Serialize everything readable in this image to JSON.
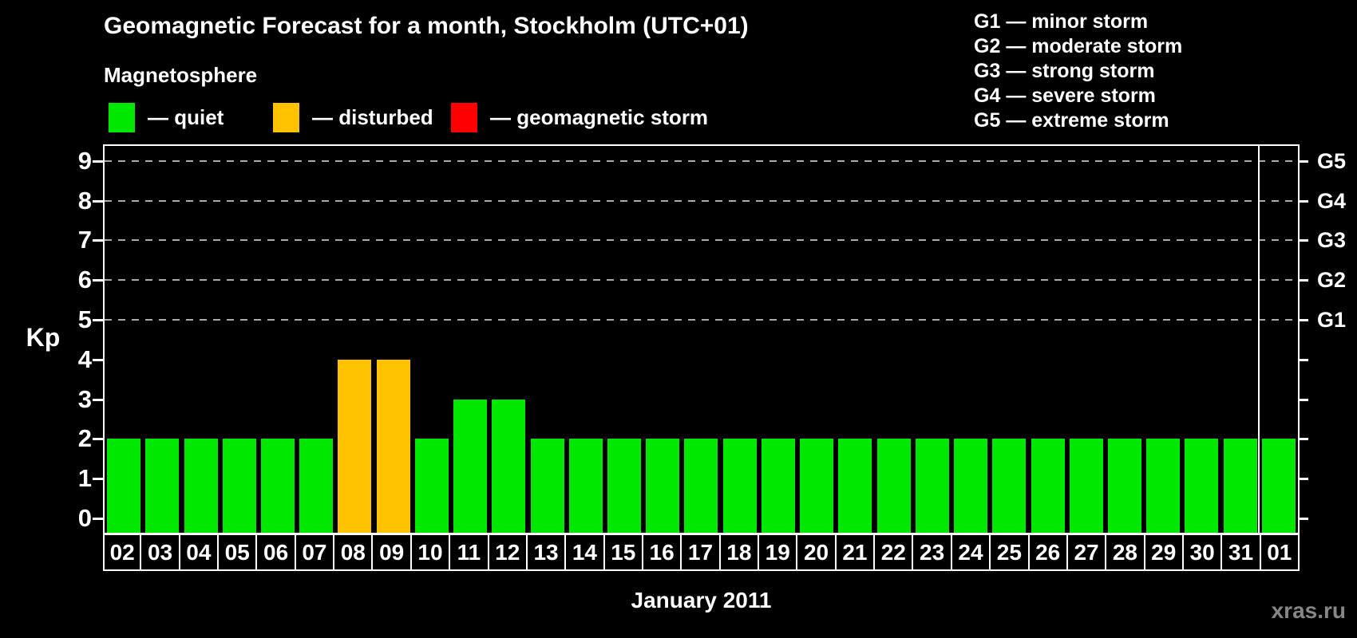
{
  "header": {
    "title": "Geomagnetic Forecast for a month, Stockholm (UTC+01)",
    "subtitle": "Magnetosphere"
  },
  "legend": {
    "items": [
      {
        "name": "quiet",
        "label": "— quiet",
        "color": "#00e800"
      },
      {
        "name": "disturbed",
        "label": "— disturbed",
        "color": "#ffc200"
      },
      {
        "name": "storm",
        "label": "— geomagnetic storm",
        "color": "#ff0000"
      }
    ]
  },
  "storm_scale": {
    "items": [
      {
        "code": "G1",
        "desc": "— minor storm"
      },
      {
        "code": "G2",
        "desc": "— moderate storm"
      },
      {
        "code": "G3",
        "desc": "— strong storm"
      },
      {
        "code": "G4",
        "desc": "— severe storm"
      },
      {
        "code": "G5",
        "desc": "— extreme storm"
      }
    ]
  },
  "footer": {
    "xlabel": "January 2011",
    "watermark": "xras.ru"
  },
  "chart_data": {
    "type": "bar",
    "title": "Geomagnetic Forecast for a month, Stockholm (UTC+01)",
    "ylabel": "Kp",
    "xlabel": "January 2011",
    "ylim": [
      0,
      9
    ],
    "yticks": [
      0,
      1,
      2,
      3,
      4,
      5,
      6,
      7,
      8,
      9
    ],
    "gridlines_at": [
      5,
      6,
      7,
      8,
      9
    ],
    "grid": true,
    "legend_position": "top-left",
    "right_axis": [
      {
        "kp": 5,
        "label": "G1"
      },
      {
        "kp": 6,
        "label": "G2"
      },
      {
        "kp": 7,
        "label": "G3"
      },
      {
        "kp": 8,
        "label": "G4"
      },
      {
        "kp": 9,
        "label": "G5"
      }
    ],
    "categories": [
      "02",
      "03",
      "04",
      "05",
      "06",
      "07",
      "08",
      "09",
      "10",
      "11",
      "12",
      "13",
      "14",
      "15",
      "16",
      "17",
      "18",
      "19",
      "20",
      "21",
      "22",
      "23",
      "24",
      "25",
      "26",
      "27",
      "28",
      "29",
      "30",
      "31",
      "01"
    ],
    "values": [
      2,
      2,
      2,
      2,
      2,
      2,
      4,
      4,
      2,
      3,
      3,
      2,
      2,
      2,
      2,
      2,
      2,
      2,
      2,
      2,
      2,
      2,
      2,
      2,
      2,
      2,
      2,
      2,
      2,
      2,
      2
    ],
    "statuses": [
      "quiet",
      "quiet",
      "quiet",
      "quiet",
      "quiet",
      "quiet",
      "disturbed",
      "disturbed",
      "quiet",
      "quiet",
      "quiet",
      "quiet",
      "quiet",
      "quiet",
      "quiet",
      "quiet",
      "quiet",
      "quiet",
      "quiet",
      "quiet",
      "quiet",
      "quiet",
      "quiet",
      "quiet",
      "quiet",
      "quiet",
      "quiet",
      "quiet",
      "quiet",
      "quiet",
      "quiet"
    ],
    "status_colors": {
      "quiet": "#00e800",
      "disturbed": "#ffc200",
      "storm": "#ff0000"
    },
    "month_separator_before_index": 30
  }
}
